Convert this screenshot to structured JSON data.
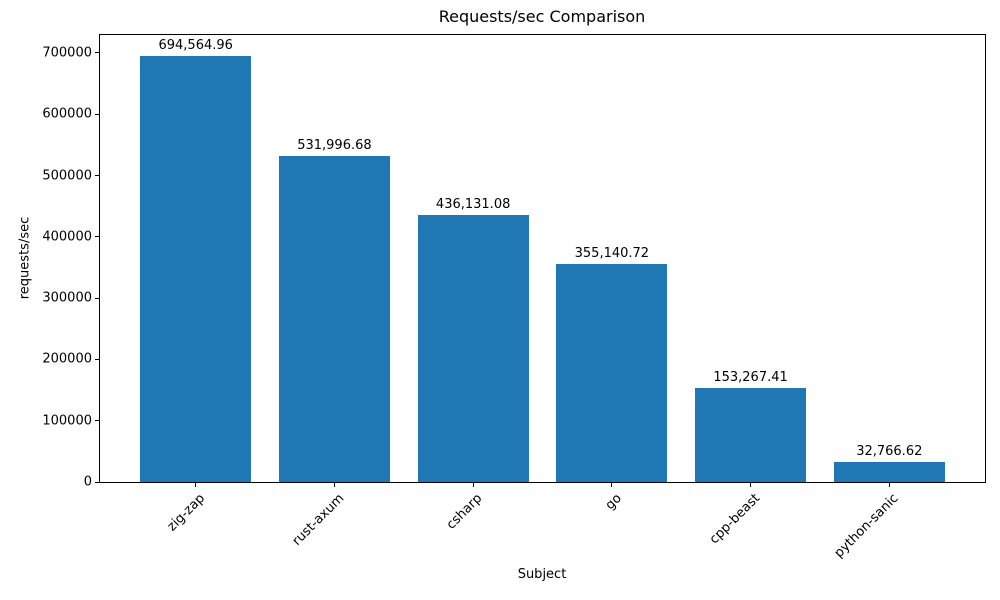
{
  "chart_data": {
    "type": "bar",
    "title": "Requests/sec Comparison",
    "xlabel": "Subject",
    "ylabel": "requests/sec",
    "categories": [
      "zig-zap",
      "rust-axum",
      "csharp",
      "go",
      "cpp-beast",
      "python-sanic"
    ],
    "values": [
      694564.96,
      531996.68,
      436131.08,
      355140.72,
      153267.41,
      32766.62
    ],
    "bar_value_labels": [
      "694,564.96",
      "531,996.68",
      "436,131.08",
      "355,140.72",
      "153,267.41",
      "32,766.62"
    ],
    "bar_color": "#1f77b4",
    "ylim": [
      0,
      729293
    ],
    "yticks": [
      0,
      100000,
      200000,
      300000,
      400000,
      500000,
      600000,
      700000
    ],
    "ytick_labels": [
      "0",
      "100000",
      "200000",
      "300000",
      "400000",
      "500000",
      "600000",
      "700000"
    ],
    "xtick_rotation_deg": 45,
    "grid": false,
    "legend": null,
    "text_color": "#000000",
    "background_color": "#ffffff"
  }
}
